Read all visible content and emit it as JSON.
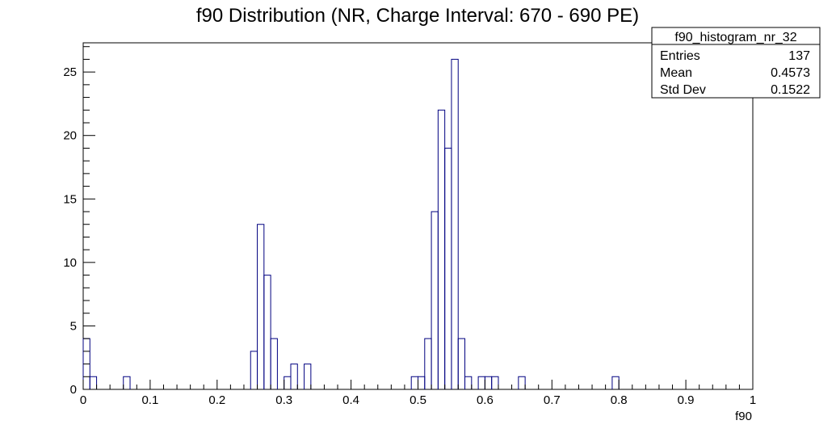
{
  "chart_data": {
    "type": "histogram",
    "title": "f90 Distribution (NR, Charge Interval: 670 - 690 PE)",
    "xlabel": "f90",
    "ylabel": "",
    "xlim": [
      0,
      1
    ],
    "ylim": [
      0,
      27.3
    ],
    "bin_width": 0.01,
    "bin_starts": [
      0.0,
      0.01,
      0.06,
      0.25,
      0.26,
      0.27,
      0.28,
      0.3,
      0.31,
      0.33,
      0.49,
      0.5,
      0.51,
      0.52,
      0.53,
      0.54,
      0.55,
      0.56,
      0.57,
      0.59,
      0.6,
      0.61,
      0.65,
      0.79
    ],
    "counts": [
      4,
      1,
      1,
      3,
      13,
      9,
      4,
      1,
      2,
      2,
      1,
      1,
      4,
      14,
      22,
      19,
      26,
      4,
      1,
      1,
      1,
      1,
      1,
      1
    ],
    "x_ticks": [
      "0",
      "0.1",
      "0.2",
      "0.3",
      "0.4",
      "0.5",
      "0.6",
      "0.7",
      "0.8",
      "0.9",
      "1"
    ],
    "y_ticks": [
      "0",
      "5",
      "10",
      "15",
      "20",
      "25"
    ],
    "line_color": "#000080",
    "grid": false,
    "legend": "none"
  },
  "stats": {
    "name": "f90_histogram_nr_32",
    "rows": [
      {
        "label": "Entries",
        "value": "137"
      },
      {
        "label": "Mean",
        "value": "0.4573"
      },
      {
        "label": "Std Dev",
        "value": "0.1522"
      }
    ]
  }
}
